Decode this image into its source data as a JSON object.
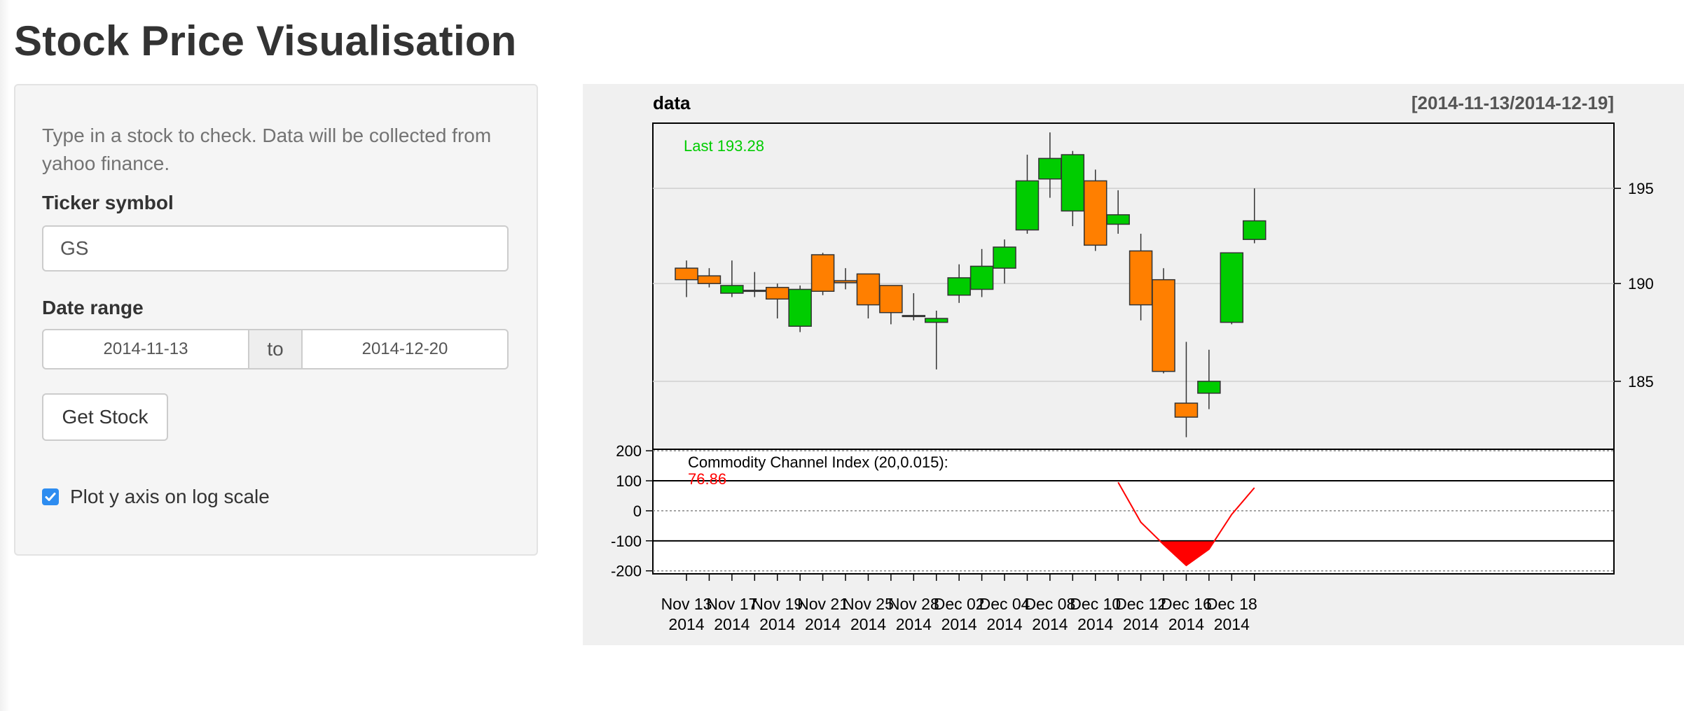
{
  "page": {
    "title": "Stock Price Visualisation"
  },
  "sidebar": {
    "help_text": "Type in a stock to check. Data will be collected from yahoo finance.",
    "ticker_label": "Ticker symbol",
    "ticker_value": "GS",
    "date_label": "Date range",
    "date_start": "2014-11-13",
    "date_sep": "to",
    "date_end": "2014-12-20",
    "button_label": "Get Stock",
    "checkbox_label": "Plot y axis on log scale",
    "checkbox_checked": true
  },
  "colors": {
    "up": "#00cc00",
    "down": "#ff7f00",
    "cci_line": "#ff0000",
    "last_label": "#00cc00",
    "panel_bg": "#f0f0f0"
  },
  "chart_data": {
    "type": "candlestick",
    "title": "data",
    "range_label": "[2014-11-13/2014-12-19]",
    "last_label": "Last 193.28",
    "y_log_scale": true,
    "ylim": [
      181.6,
      198.5
    ],
    "yticks": [
      185,
      190,
      195
    ],
    "x_tick_labels": [
      {
        "date": "Nov 13",
        "year": "2014",
        "index": 0
      },
      {
        "date": "Nov 17",
        "year": "2014",
        "index": 2
      },
      {
        "date": "Nov 19",
        "year": "2014",
        "index": 4
      },
      {
        "date": "Nov 21",
        "year": "2014",
        "index": 6
      },
      {
        "date": "Nov 25",
        "year": "2014",
        "index": 8
      },
      {
        "date": "Nov 28",
        "year": "2014",
        "index": 10
      },
      {
        "date": "Dec 02",
        "year": "2014",
        "index": 12
      },
      {
        "date": "Dec 04",
        "year": "2014",
        "index": 14
      },
      {
        "date": "Dec 08",
        "year": "2014",
        "index": 16
      },
      {
        "date": "Dec 10",
        "year": "2014",
        "index": 18
      },
      {
        "date": "Dec 12",
        "year": "2014",
        "index": 20
      },
      {
        "date": "Dec 16",
        "year": "2014",
        "index": 22
      },
      {
        "date": "Dec 18",
        "year": "2014",
        "index": 24
      }
    ],
    "candles": [
      {
        "date": "2014-11-13",
        "open": 190.8,
        "high": 191.2,
        "low": 189.3,
        "close": 190.2
      },
      {
        "date": "2014-11-14",
        "open": 190.4,
        "high": 190.8,
        "low": 189.8,
        "close": 190.0
      },
      {
        "date": "2014-11-17",
        "open": 189.5,
        "high": 191.2,
        "low": 189.3,
        "close": 189.9
      },
      {
        "date": "2014-11-18",
        "open": 189.65,
        "high": 190.6,
        "low": 189.3,
        "close": 189.6
      },
      {
        "date": "2014-11-19",
        "open": 189.8,
        "high": 190.0,
        "low": 188.2,
        "close": 189.2
      },
      {
        "date": "2014-11-20",
        "open": 187.8,
        "high": 189.9,
        "low": 187.5,
        "close": 189.7
      },
      {
        "date": "2014-11-21",
        "open": 191.5,
        "high": 191.6,
        "low": 189.4,
        "close": 189.6
      },
      {
        "date": "2014-11-24",
        "open": 190.15,
        "high": 190.8,
        "low": 189.7,
        "close": 190.05
      },
      {
        "date": "2014-11-25",
        "open": 190.5,
        "high": 190.5,
        "low": 188.2,
        "close": 188.9
      },
      {
        "date": "2014-11-26",
        "open": 189.9,
        "high": 189.9,
        "low": 187.9,
        "close": 188.5
      },
      {
        "date": "2014-11-28",
        "open": 188.35,
        "high": 189.5,
        "low": 188.1,
        "close": 188.35
      },
      {
        "date": "2014-12-01",
        "open": 188.0,
        "high": 188.6,
        "low": 185.6,
        "close": 188.2
      },
      {
        "date": "2014-12-02",
        "open": 189.4,
        "high": 191.0,
        "low": 189.0,
        "close": 190.3
      },
      {
        "date": "2014-12-03",
        "open": 189.7,
        "high": 191.8,
        "low": 189.3,
        "close": 190.9
      },
      {
        "date": "2014-12-04",
        "open": 190.8,
        "high": 192.3,
        "low": 190.0,
        "close": 191.9
      },
      {
        "date": "2014-12-05",
        "open": 192.8,
        "high": 196.8,
        "low": 192.6,
        "close": 195.4
      },
      {
        "date": "2014-12-08",
        "open": 195.5,
        "high": 198.0,
        "low": 194.5,
        "close": 196.6
      },
      {
        "date": "2014-12-09",
        "open": 193.8,
        "high": 197.0,
        "low": 193.0,
        "close": 196.8
      },
      {
        "date": "2014-12-10",
        "open": 195.4,
        "high": 196.0,
        "low": 191.7,
        "close": 192.0
      },
      {
        "date": "2014-12-11",
        "open": 193.1,
        "high": 194.9,
        "low": 192.6,
        "close": 193.6
      },
      {
        "date": "2014-12-12",
        "open": 191.7,
        "high": 192.6,
        "low": 188.1,
        "close": 188.9
      },
      {
        "date": "2014-12-15",
        "open": 190.2,
        "high": 190.8,
        "low": 185.4,
        "close": 185.5
      },
      {
        "date": "2014-12-16",
        "open": 183.9,
        "high": 187.0,
        "low": 182.2,
        "close": 183.2
      },
      {
        "date": "2014-12-17",
        "open": 184.4,
        "high": 186.6,
        "low": 183.6,
        "close": 185.0
      },
      {
        "date": "2014-12-18",
        "open": 188.0,
        "high": 191.6,
        "low": 187.9,
        "close": 191.6
      },
      {
        "date": "2014-12-19",
        "open": 192.3,
        "high": 195.0,
        "low": 192.1,
        "close": 193.28
      }
    ],
    "indicator": {
      "label": "Commodity Channel Index (20,0.015):",
      "value_label": "76.86",
      "ylim": [
        -210,
        205
      ],
      "yticks": [
        200,
        100,
        0,
        -100,
        -200
      ],
      "dotted_levels": [
        200,
        0,
        -200
      ],
      "solid_levels": [
        100,
        -100
      ],
      "points": [
        {
          "index": 19,
          "value": 95
        },
        {
          "index": 20,
          "value": -38
        },
        {
          "index": 21,
          "value": -112
        },
        {
          "index": 22,
          "value": -182
        },
        {
          "index": 23,
          "value": -128
        },
        {
          "index": 24,
          "value": -12
        },
        {
          "index": 25,
          "value": 76.86
        }
      ]
    }
  }
}
